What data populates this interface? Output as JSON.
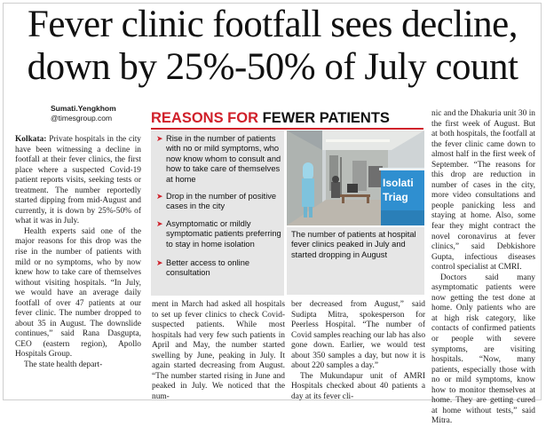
{
  "headline": {
    "line1": "Fever clinic footfall sees decline,",
    "line2": "down by 25%-50% of July count"
  },
  "byline": {
    "name": "Sumati.Yengkhom",
    "handle": "@timesgroup.com"
  },
  "reasons": {
    "title_red": "REASONS FOR",
    "title_black": "FEWER PATIENTS",
    "items": [
      "Rise in the number of patients with no or mild symptoms, who now know whom to consult and how to take care of themselves at home",
      "Drop in the number of positive cases in the city",
      "Asymptomatic or mildly symptomatic patients preferring to stay in home isolation",
      "Better access to online consultation"
    ]
  },
  "photo": {
    "sign_line1": "Isolati",
    "sign_line2": "Triag"
  },
  "caption": "The number of patients at hospital fever clinics peaked in July and started dropping in August",
  "column1": {
    "dateline": "Kolkata:",
    "p1_rest": "Private hospitals in the city have been witnessing a decline in footfall at their fever clinics, the first place where a suspected Covid-19 patient reports visits, seeking tests or treatment. The number reportedly started dipping from mid-August and currently, it is down by 25%-50% of what it was in July.",
    "p2": "Health experts said one of the major reasons for this drop was the rise in the number of patients with mild or no symptoms, who by now knew how to take care of themselves without visiting hospitals. “In July, we would have an average daily footfall of over 47 patients at our fever clinic. The number dropped to about 35 in August. The downslide continues,” said Rana Dasgupta, CEO (eastern region), Apollo Hospitals Group.",
    "p3": "The state health depart-"
  },
  "column2": {
    "text": "ment in March had asked all hospitals to set up fever clinics to check Covid-suspected patients. While most hospitals had very few such patients in April and May, the number started swelling by June, peaking in July. It again started decreasing from August. “The number started rising in June and peaked in July. We noticed that the num-"
  },
  "column3": {
    "p1": "ber decreased from August,” said Sudipta Mitra, spokesperson for Peerless Hospital. “The number of Covid samples reaching our lab has also gone down. Earlier, we would test about 350 samples a day, but now it is about 220 samples a day.”",
    "p2": "The Mukundapur unit of AMRI Hospitals checked about 40 patients a day at its fever cli-"
  },
  "column4": {
    "p1": "nic and the Dhakuria unit 30 in the first week of August. But at both hospitals, the footfall at the fever clinic came down to almost half in the first week of September. “The reasons for this drop are reduction in number of cases in the city, more video consultations and people panicking less and staying at home. Also, some fear they might contract the novel coronavirus at fever clinics,” said Debkishore Gupta, infectious diseases control specialist at CMRI.",
    "p2": "Doctors said many asymptomatic patients were now getting the test done at home. Only patients who are at high risk category, like contacts of confirmed patients or people with severe symptoms, are visiting hospitals. “Now, many patients, especially those with no or mild symptoms, know how to monitor themselves at home. They are getting cured at home without tests,” said Mitra."
  }
}
